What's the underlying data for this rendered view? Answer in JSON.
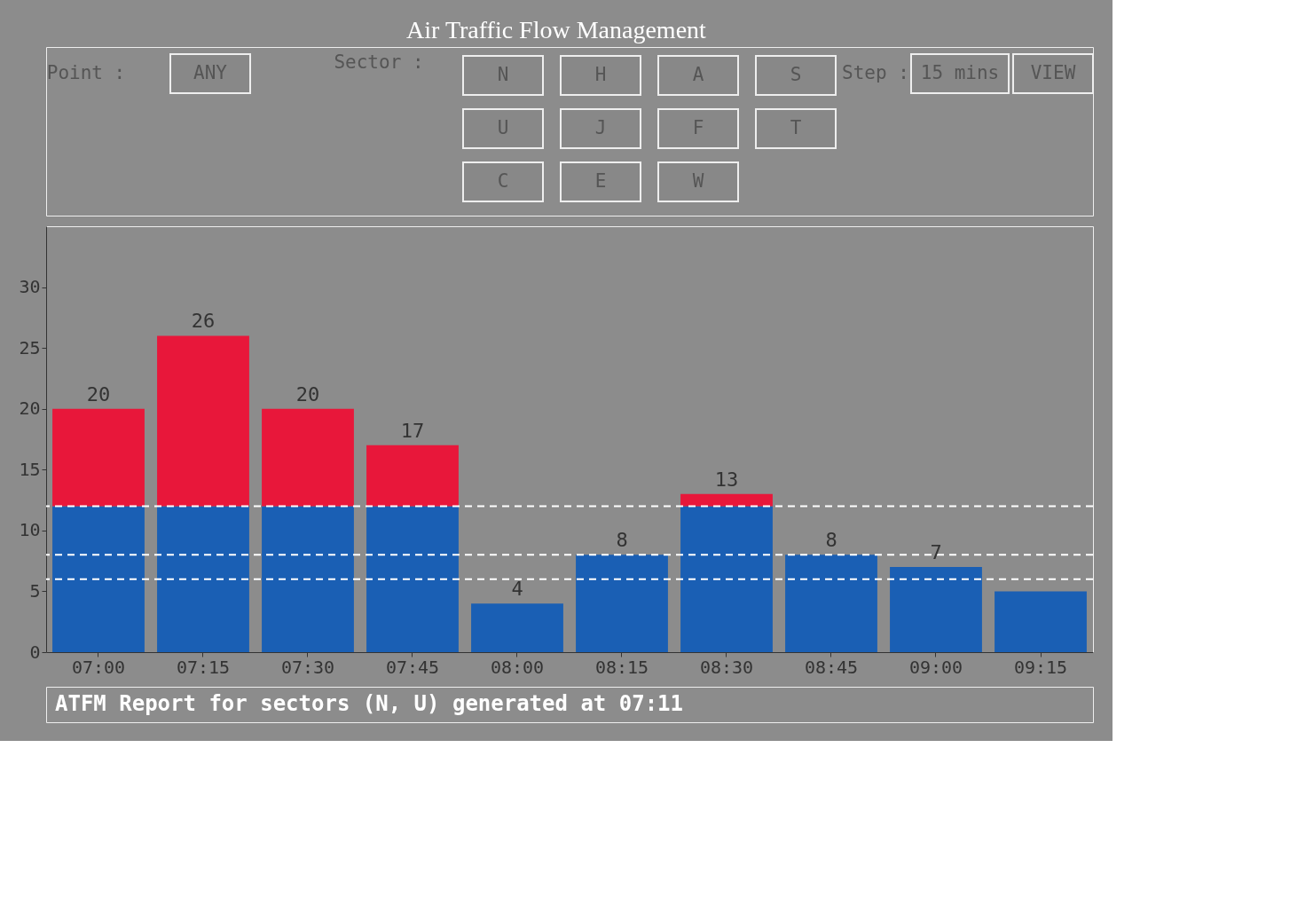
{
  "chart_data": {
    "type": "bar",
    "title": "Air Traffic Flow Management",
    "categories": [
      "07:00",
      "07:15",
      "07:30",
      "07:45",
      "08:00",
      "08:15",
      "08:30",
      "08:45",
      "09:00",
      "09:15"
    ],
    "stacked": true,
    "series": [
      {
        "color": "#1a5fb4",
        "values": [
          12,
          12,
          12,
          12,
          4,
          8,
          12,
          8,
          7,
          5
        ]
      },
      {
        "color": "#e8173a",
        "values": [
          8,
          14,
          8,
          5,
          0,
          0,
          1,
          0,
          0,
          0
        ]
      }
    ],
    "totals": [
      "20",
      "26",
      "20",
      "17",
      "4",
      "8",
      "13",
      "8",
      "7",
      null
    ],
    "ylim": [
      0,
      35
    ],
    "yticks": [
      0,
      5,
      10,
      15,
      20,
      25,
      30
    ],
    "ref_lines": [
      {
        "axis": "y",
        "value": 12,
        "color": "#ffffff",
        "line_style": "dashed"
      },
      {
        "axis": "y",
        "value": 8,
        "color": "#ffffff",
        "line_style": "dashed"
      },
      {
        "axis": "y",
        "value": 6,
        "color": "#ffffff",
        "line_style": "dashed"
      }
    ],
    "grid": false,
    "legend": false,
    "annotations": [
      "Point :",
      "ANY",
      "Sector :",
      "N",
      "H",
      "A",
      "S",
      "U",
      "J",
      "F",
      "T",
      "C",
      "E",
      "W",
      "Step :",
      "15 mins",
      "VIEW",
      "ATFM Report for sectors (N, U) generated at 07:11"
    ]
  }
}
